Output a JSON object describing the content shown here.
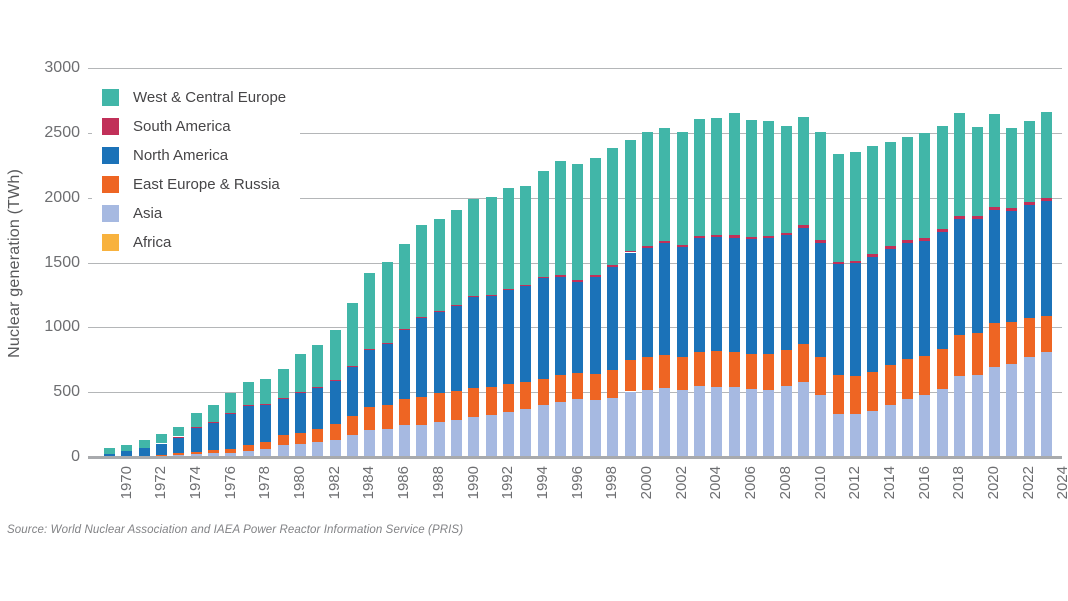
{
  "figure": {
    "y_axis_title": "Nuclear generation (TWh)",
    "source_note": "Source: World Nuclear Association and IAEA Power Reactor Information Service (PRIS)"
  },
  "palette": {
    "west_central_europe": "#41b6a8",
    "south_america": "#c13059",
    "north_america": "#1b72b8",
    "east_europe_russia": "#ee6523",
    "asia": "#a6b9e1",
    "africa": "#f8b23e",
    "gridline": "#b4b6b8",
    "axis_baseline": "#a8aaad",
    "tick_text": "#6d6e71",
    "legend_text": "#464547",
    "source_text": "#818285"
  },
  "chart_data": {
    "type": "bar",
    "stacked": true,
    "title": "",
    "xlabel": "",
    "ylabel": "Nuclear generation (TWh)",
    "ylim": [
      0,
      3000
    ],
    "ytick_step": 500,
    "ytick_labels": [
      "0",
      "500",
      "1000",
      "1500",
      "2000",
      "2500",
      "3000"
    ],
    "grid": "horizontal",
    "legend_position": "top-left-inside",
    "x_tick_every": 2,
    "x": [
      1970,
      1971,
      1972,
      1973,
      1974,
      1975,
      1976,
      1977,
      1978,
      1979,
      1980,
      1981,
      1982,
      1983,
      1984,
      1985,
      1986,
      1987,
      1988,
      1989,
      1990,
      1991,
      1992,
      1993,
      1994,
      1995,
      1996,
      1997,
      1998,
      1999,
      2000,
      2001,
      2002,
      2003,
      2004,
      2005,
      2006,
      2007,
      2008,
      2009,
      2010,
      2011,
      2012,
      2013,
      2014,
      2015,
      2016,
      2017,
      2018,
      2019,
      2020,
      2021,
      2022,
      2023,
      2024
    ],
    "stack_order_note": "series listed bottom-to-top as stacked; legend shown top-to-bottom reversed",
    "series": [
      {
        "key": "africa",
        "name": "Africa",
        "color": "#f8b23e",
        "values": [
          0,
          0,
          0,
          0,
          0,
          0,
          0,
          0,
          0,
          0,
          0,
          0,
          0,
          0,
          4,
          5,
          6,
          7,
          8,
          10,
          8,
          9,
          9,
          7,
          10,
          11,
          12,
          13,
          13,
          13,
          13,
          11,
          12,
          13,
          14,
          12,
          10,
          11,
          12,
          12,
          13,
          13,
          13,
          14,
          15,
          11,
          15,
          15,
          11,
          14,
          12,
          12,
          10,
          8,
          13
        ]
      },
      {
        "key": "asia",
        "name": "Asia",
        "color": "#a6b9e1",
        "values": [
          7,
          10,
          12,
          16,
          23,
          28,
          37,
          36,
          56,
          70,
          97,
          105,
          120,
          140,
          170,
          208,
          220,
          245,
          250,
          270,
          285,
          305,
          320,
          350,
          370,
          400,
          420,
          440,
          435,
          450,
          500,
          515,
          530,
          510,
          545,
          536,
          540,
          520,
          510,
          540,
          576,
          470,
          330,
          325,
          351,
          397,
          441,
          468,
          525,
          615,
          626,
          688,
          716,
          772,
          803
        ]
      },
      {
        "key": "east_europe_russia",
        "name": "East Europe & Russia",
        "color": "#ee6523",
        "values": [
          4,
          5,
          7,
          9,
          13,
          20,
          26,
          33,
          42,
          55,
          79,
          90,
          103,
          120,
          150,
          180,
          185,
          200,
          216,
          220,
          227,
          225,
          220,
          215,
          205,
          199,
          205,
          200,
          200,
          215,
          242,
          250,
          255,
          255,
          260,
          274,
          270,
          275,
          280,
          280,
          289,
          295,
          296,
          292,
          295,
          313,
          305,
          300,
          308,
          318,
          323,
          345,
          320,
          302,
          283
        ]
      },
      {
        "key": "north_america",
        "name": "North America",
        "color": "#1b72b8",
        "values": [
          23,
          40,
          57,
          87,
          128,
          185,
          210,
          277,
          305,
          285,
          287,
          310,
          320,
          342,
          380,
          440,
          472,
          540,
          605,
          630,
          649,
          705,
          700,
          720,
          740,
          775,
          760,
          705,
          750,
          798,
          830,
          845,
          860,
          850,
          880,
          880,
          880,
          885,
          895,
          890,
          899,
          880,
          856,
          870,
          890,
          890,
          900,
          890,
          900,
          900,
          885,
          870,
          860,
          870,
          880
        ]
      },
      {
        "key": "south_america",
        "name": "South America",
        "color": "#c13059",
        "values": [
          0,
          0,
          0,
          0,
          2,
          3,
          3,
          3,
          3,
          3,
          2,
          2,
          2,
          3,
          5,
          9,
          7,
          6,
          6,
          7,
          9,
          9,
          10,
          10,
          10,
          10,
          13,
          13,
          13,
          12,
          11,
          12,
          13,
          14,
          16,
          16,
          17,
          16,
          16,
          15,
          21,
          20,
          16,
          20,
          20,
          21,
          24,
          21,
          21,
          22,
          24,
          24,
          24,
          23,
          25
        ]
      },
      {
        "key": "west_central_europe",
        "name": "West & Central Europe",
        "color": "#41b6a8",
        "values": [
          45,
          49,
          60,
          77,
          77,
          111,
          131,
          153,
          183,
          197,
          219,
          294,
          329,
          384,
          486,
          583,
          624,
          655,
          709,
          706,
          731,
          741,
          753,
          778,
          765,
          815,
          882,
          900,
          902,
          905,
          854,
          884,
          876,
          876,
          901,
          908,
          943,
          901,
          884,
          821,
          832,
          840,
          835,
          838,
          839,
          809,
          792,
          809,
          798,
          788,
          683,
          714,
          615,
          627,
          663
        ]
      }
    ],
    "legend": [
      {
        "name": "West & Central Europe",
        "color": "#41b6a8"
      },
      {
        "name": "South America",
        "color": "#c13059"
      },
      {
        "name": "North America",
        "color": "#1b72b8"
      },
      {
        "name": "East Europe & Russia",
        "color": "#ee6523"
      },
      {
        "name": "Asia",
        "color": "#a6b9e1"
      },
      {
        "name": "Africa",
        "color": "#f8b23e"
      }
    ]
  }
}
